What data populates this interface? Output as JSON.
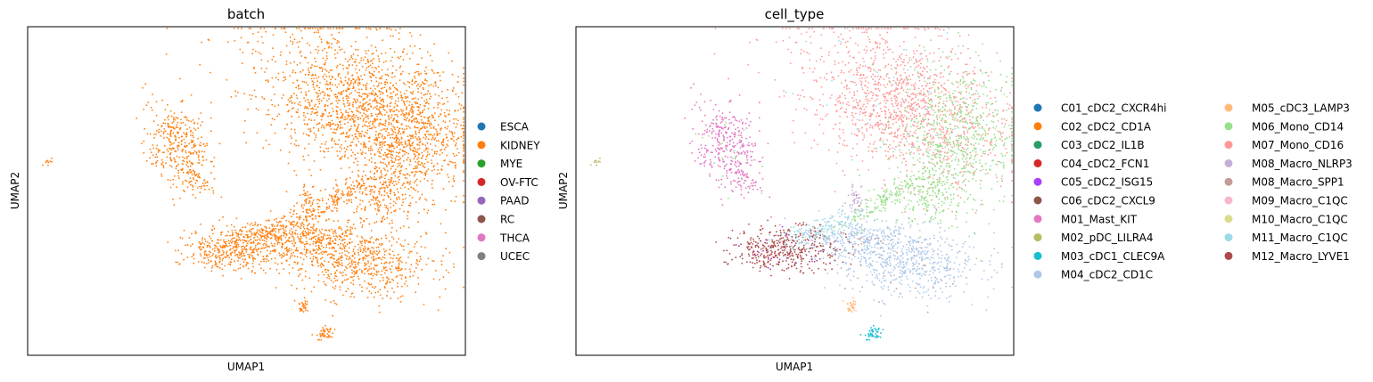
{
  "chart_data": [
    {
      "type": "scatter",
      "title": "batch",
      "xlabel": "UMAP1",
      "ylabel": "UMAP2",
      "grid": false,
      "legend_placement": "right",
      "legend": [
        {
          "name": "ESCA",
          "color": "#1f77b4"
        },
        {
          "name": "KIDNEY",
          "color": "#ff7f0e"
        },
        {
          "name": "MYE",
          "color": "#2ca02c"
        },
        {
          "name": "OV-FTC",
          "color": "#d62728"
        },
        {
          "name": "PAAD",
          "color": "#9467bd"
        },
        {
          "name": "RC",
          "color": "#8c564b"
        },
        {
          "name": "THCA",
          "color": "#e377c2"
        },
        {
          "name": "UCEC",
          "color": "#7f7f7f"
        }
      ],
      "visible_category": "KIDNEY"
    },
    {
      "type": "scatter",
      "title": "cell_type",
      "xlabel": "UMAP1",
      "ylabel": "UMAP2",
      "grid": false,
      "legend_placement": "right",
      "legend_columns": 2,
      "legend": [
        {
          "name": "C01_cDC2_CXCR4hi",
          "color": "#1f77b4"
        },
        {
          "name": "C02_cDC2_CD1A",
          "color": "#ff7f0e"
        },
        {
          "name": "C03_cDC2_IL1B",
          "color": "#279e68"
        },
        {
          "name": "C04_cDC2_FCN1",
          "color": "#d62728"
        },
        {
          "name": "C05_cDC2_ISG15",
          "color": "#aa40fc"
        },
        {
          "name": "C06_cDC2_CXCL9",
          "color": "#8c564b"
        },
        {
          "name": "M01_Mast_KIT",
          "color": "#e377c2"
        },
        {
          "name": "M02_pDC_LILRA4",
          "color": "#b5bd61"
        },
        {
          "name": "M03_cDC1_CLEC9A",
          "color": "#17becf"
        },
        {
          "name": "M04_cDC2_CD1C",
          "color": "#aec7e8"
        },
        {
          "name": "M05_cDC3_LAMP3",
          "color": "#ffbb78"
        },
        {
          "name": "M06_Mono_CD14",
          "color": "#98df8a"
        },
        {
          "name": "M07_Mono_CD16",
          "color": "#ff9896"
        },
        {
          "name": "M08_Macro_NLRP3",
          "color": "#c5b0d5"
        },
        {
          "name": "M08_Macro_SPP1",
          "color": "#c49c94"
        },
        {
          "name": "M09_Macro_C1QC",
          "color": "#f7b6d2"
        },
        {
          "name": "M10_Macro_C1QC",
          "color": "#dbdb8d"
        },
        {
          "name": "M11_Macro_C1QC",
          "color": "#9edae5"
        },
        {
          "name": "M12_Macro_LYVE1",
          "color": "#ad494a"
        }
      ]
    }
  ]
}
